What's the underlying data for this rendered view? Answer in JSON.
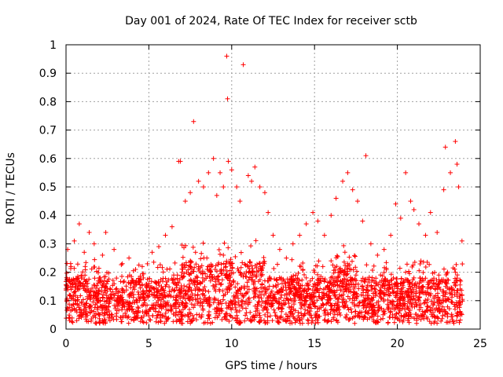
{
  "chart_data": {
    "type": "scatter",
    "title": "Day 001 of 2024, Rate Of TEC Index for receiver sctb",
    "xlabel": "GPS time / hours",
    "ylabel": "ROTI / TECUs",
    "xlim": [
      0,
      25
    ],
    "ylim": [
      0,
      1
    ],
    "x_ticks": [
      "0",
      "5",
      "10",
      "15",
      "20",
      "25"
    ],
    "y_ticks": [
      "0",
      "0.1",
      "0.2",
      "0.3",
      "0.4",
      "0.5",
      "0.6",
      "0.7",
      "0.8",
      "0.9",
      "1"
    ],
    "grid": true,
    "marker": "+",
    "color": "#ff0000",
    "series": [
      {
        "values": [
          [
            0.1,
            0.28
          ],
          [
            0.3,
            0.22
          ],
          [
            0.5,
            0.31
          ],
          [
            0.8,
            0.37
          ],
          [
            1.1,
            0.27
          ],
          [
            1.4,
            0.34
          ],
          [
            1.7,
            0.3
          ],
          [
            2.2,
            0.26
          ],
          [
            2.4,
            0.34
          ],
          [
            2.9,
            0.28
          ],
          [
            3.4,
            0.23
          ],
          [
            3.8,
            0.25
          ],
          [
            4.2,
            0.21
          ],
          [
            4.6,
            0.22
          ],
          [
            5.2,
            0.27
          ],
          [
            5.6,
            0.29
          ],
          [
            6.0,
            0.33
          ],
          [
            6.4,
            0.36
          ],
          [
            6.8,
            0.59
          ],
          [
            6.9,
            0.59
          ],
          [
            7.2,
            0.45
          ],
          [
            7.5,
            0.48
          ],
          [
            7.7,
            0.73
          ],
          [
            8.0,
            0.52
          ],
          [
            8.3,
            0.5
          ],
          [
            8.6,
            0.55
          ],
          [
            8.9,
            0.6
          ],
          [
            9.1,
            0.47
          ],
          [
            9.3,
            0.55
          ],
          [
            9.5,
            0.5
          ],
          [
            9.7,
            0.96
          ],
          [
            9.75,
            0.81
          ],
          [
            9.8,
            0.59
          ],
          [
            10.0,
            0.56
          ],
          [
            10.3,
            0.5
          ],
          [
            10.5,
            0.45
          ],
          [
            10.7,
            0.93
          ],
          [
            11.0,
            0.54
          ],
          [
            11.2,
            0.52
          ],
          [
            11.4,
            0.57
          ],
          [
            11.7,
            0.5
          ],
          [
            12.0,
            0.48
          ],
          [
            12.2,
            0.41
          ],
          [
            12.5,
            0.33
          ],
          [
            12.9,
            0.28
          ],
          [
            13.3,
            0.25
          ],
          [
            13.7,
            0.3
          ],
          [
            14.1,
            0.33
          ],
          [
            14.5,
            0.37
          ],
          [
            14.9,
            0.41
          ],
          [
            15.2,
            0.38
          ],
          [
            15.6,
            0.33
          ],
          [
            16.0,
            0.4
          ],
          [
            16.3,
            0.46
          ],
          [
            16.7,
            0.52
          ],
          [
            17.0,
            0.55
          ],
          [
            17.3,
            0.49
          ],
          [
            17.6,
            0.45
          ],
          [
            17.9,
            0.38
          ],
          [
            18.1,
            0.61
          ],
          [
            18.4,
            0.3
          ],
          [
            18.8,
            0.26
          ],
          [
            19.2,
            0.28
          ],
          [
            19.6,
            0.33
          ],
          [
            19.9,
            0.44
          ],
          [
            20.2,
            0.39
          ],
          [
            20.5,
            0.55
          ],
          [
            20.8,
            0.45
          ],
          [
            21.0,
            0.42
          ],
          [
            21.3,
            0.37
          ],
          [
            21.7,
            0.33
          ],
          [
            22.0,
            0.41
          ],
          [
            22.4,
            0.34
          ],
          [
            22.8,
            0.49
          ],
          [
            22.9,
            0.64
          ],
          [
            23.2,
            0.55
          ],
          [
            23.5,
            0.66
          ],
          [
            23.6,
            0.58
          ],
          [
            23.7,
            0.5
          ],
          [
            23.9,
            0.31
          ],
          [
            0.2,
            0.12
          ],
          [
            0.6,
            0.09
          ],
          [
            1.0,
            0.15
          ],
          [
            1.5,
            0.11
          ],
          [
            2.0,
            0.18
          ],
          [
            2.5,
            0.1
          ],
          [
            3.0,
            0.14
          ],
          [
            3.5,
            0.09
          ],
          [
            4.0,
            0.13
          ],
          [
            4.5,
            0.11
          ],
          [
            5.0,
            0.16
          ],
          [
            5.5,
            0.12
          ],
          [
            6.0,
            0.15
          ],
          [
            6.5,
            0.19
          ],
          [
            7.0,
            0.2
          ],
          [
            7.5,
            0.24
          ],
          [
            8.0,
            0.22
          ],
          [
            8.5,
            0.25
          ],
          [
            9.0,
            0.21
          ],
          [
            9.5,
            0.26
          ],
          [
            10.0,
            0.23
          ],
          [
            10.5,
            0.2
          ],
          [
            11.0,
            0.22
          ],
          [
            11.5,
            0.19
          ],
          [
            12.0,
            0.17
          ],
          [
            12.5,
            0.15
          ],
          [
            13.0,
            0.12
          ],
          [
            13.5,
            0.14
          ],
          [
            14.0,
            0.16
          ],
          [
            14.5,
            0.18
          ],
          [
            15.0,
            0.2
          ],
          [
            15.5,
            0.22
          ],
          [
            16.0,
            0.24
          ],
          [
            16.5,
            0.21
          ],
          [
            17.0,
            0.23
          ],
          [
            17.5,
            0.19
          ],
          [
            18.0,
            0.1
          ],
          [
            18.5,
            0.08
          ],
          [
            19.0,
            0.11
          ],
          [
            19.5,
            0.14
          ],
          [
            20.0,
            0.16
          ],
          [
            20.5,
            0.2
          ],
          [
            21.0,
            0.18
          ],
          [
            21.5,
            0.15
          ],
          [
            22.0,
            0.17
          ],
          [
            22.5,
            0.19
          ],
          [
            23.0,
            0.16
          ],
          [
            23.5,
            0.2
          ],
          [
            23.9,
            0.12
          ]
        ]
      }
    ]
  }
}
